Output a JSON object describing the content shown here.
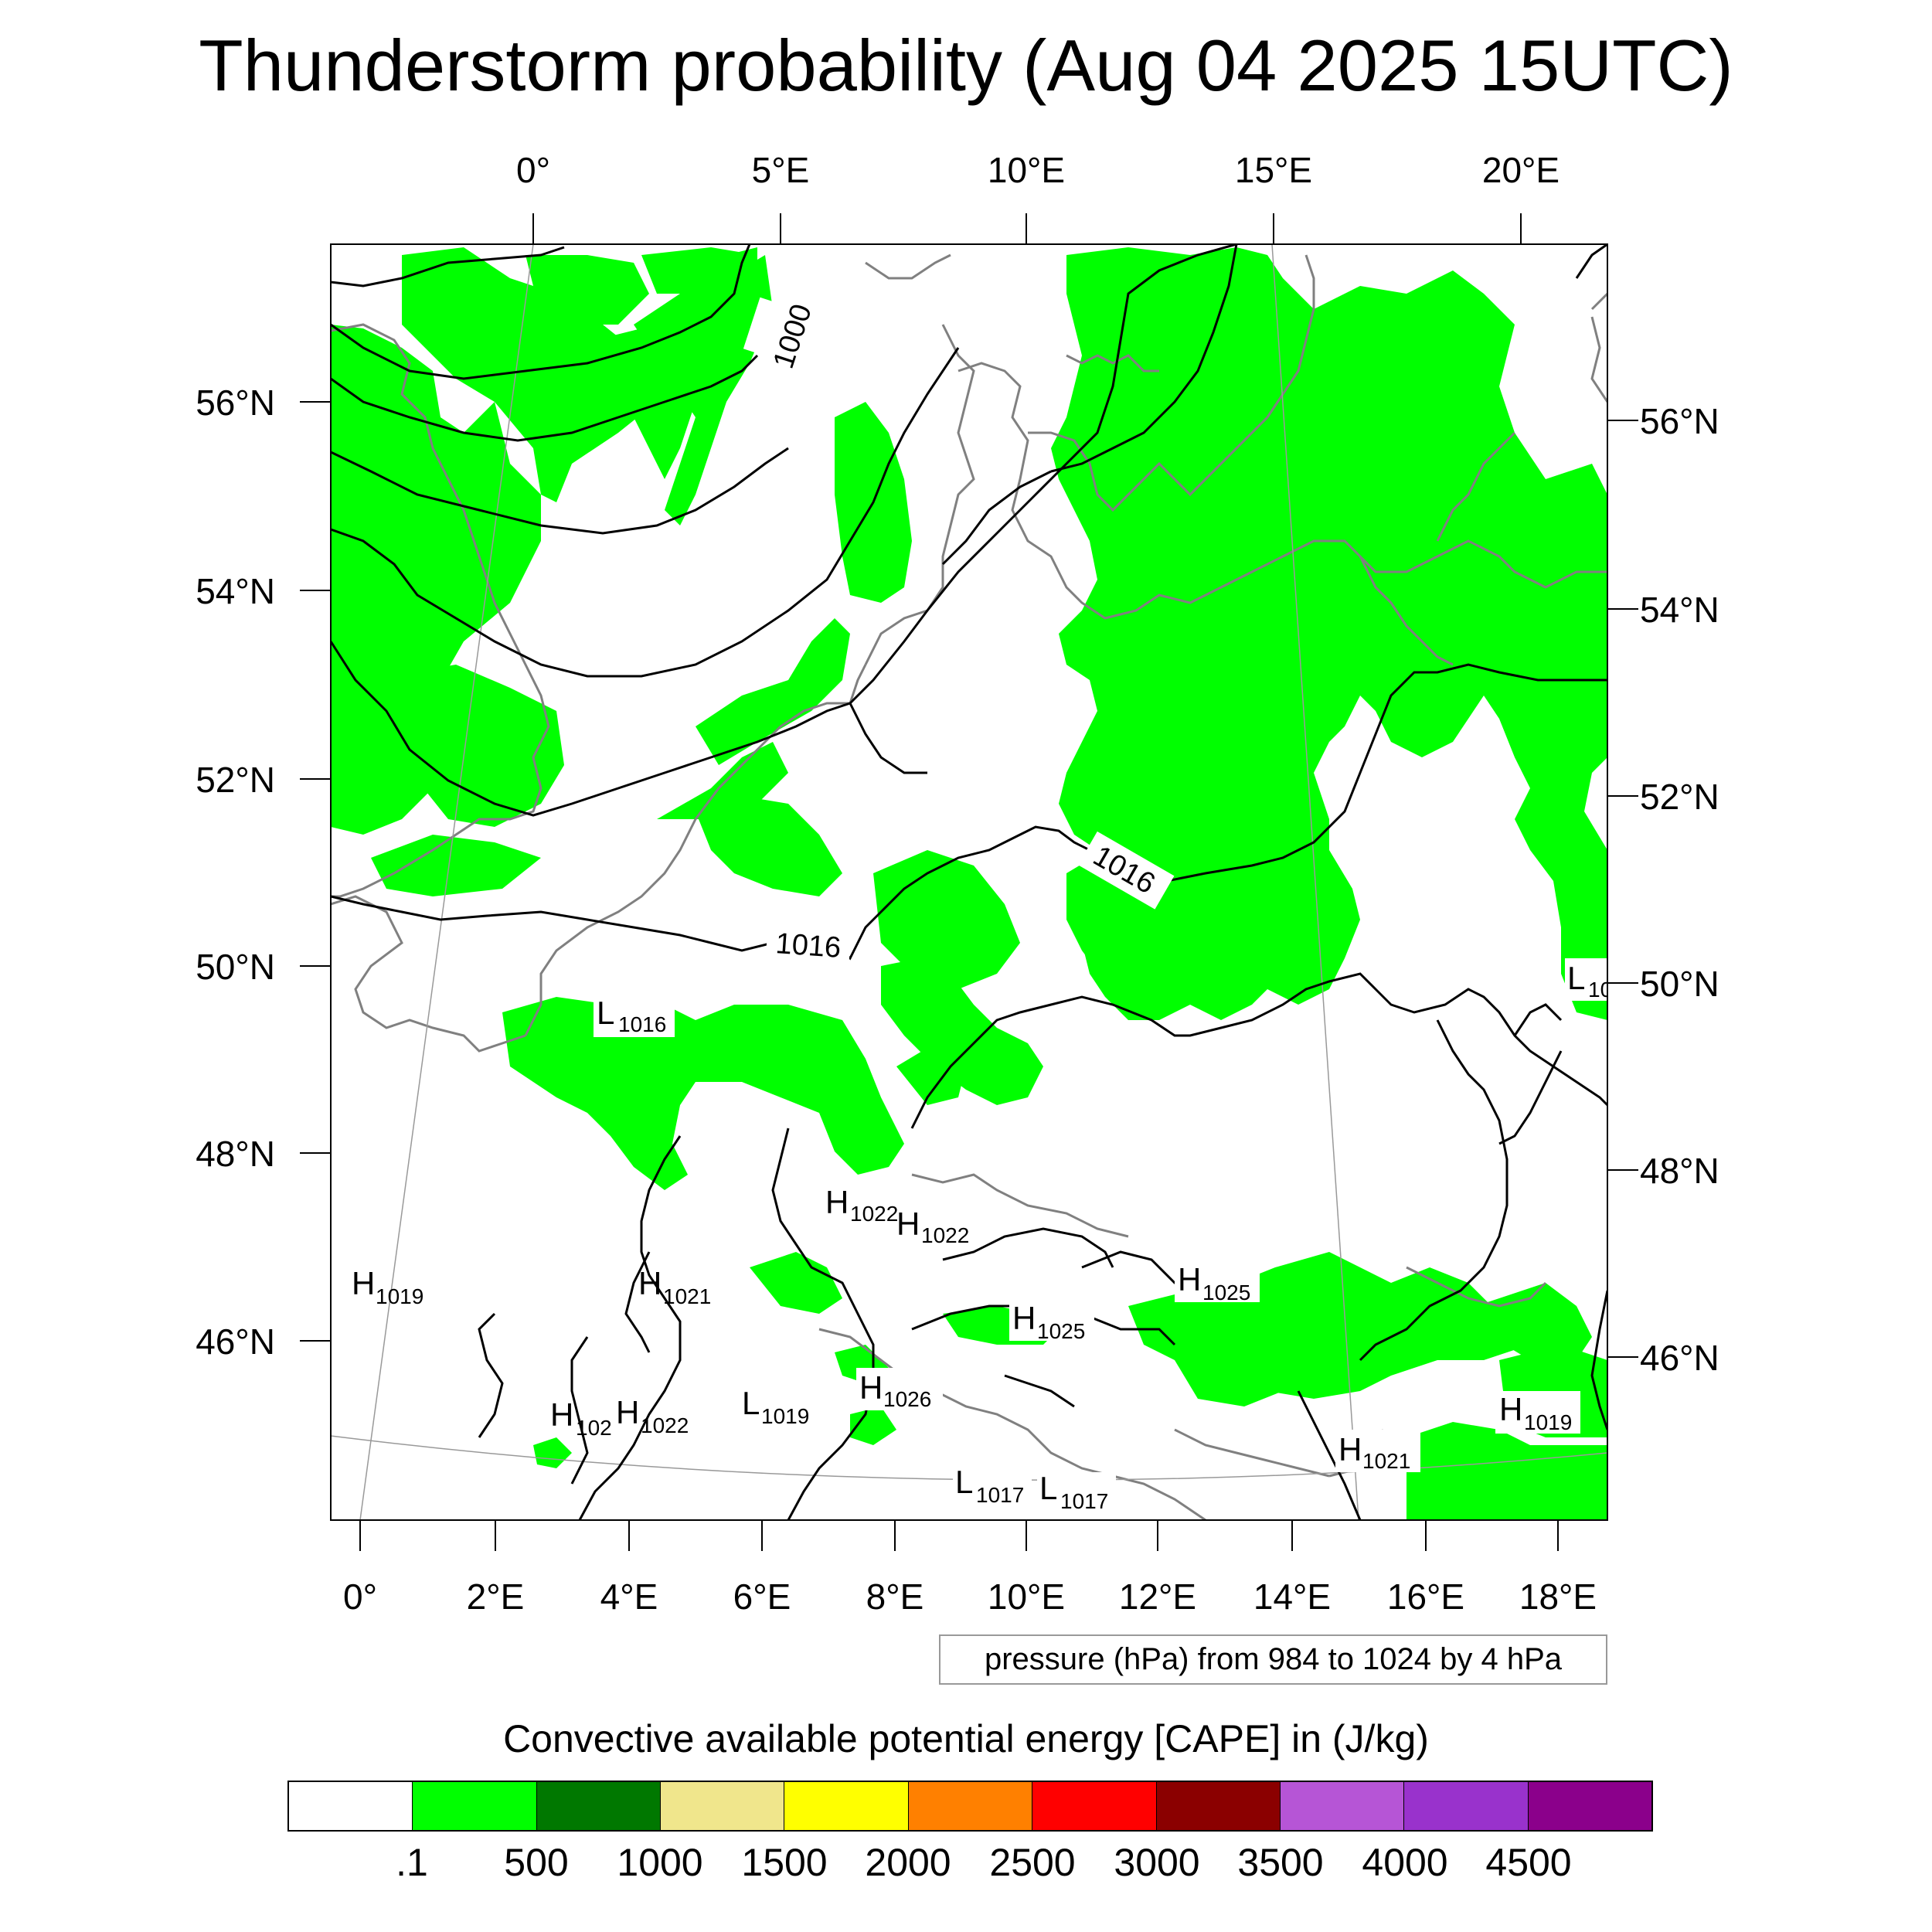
{
  "title": "Thunderstorm probability (Aug 04 2025 15UTC)",
  "map": {
    "top_lon_labels": [
      "0°",
      "5°E",
      "10°E",
      "15°E",
      "20°E"
    ],
    "bottom_lon_labels": [
      "0°",
      "2°E",
      "4°E",
      "6°E",
      "8°E",
      "10°E",
      "12°E",
      "14°E",
      "16°E",
      "18°E"
    ],
    "left_lat_labels": [
      "56°N",
      "54°N",
      "52°N",
      "50°N",
      "48°N",
      "46°N"
    ],
    "right_lat_labels": [
      "56°N",
      "54°N",
      "52°N",
      "50°N",
      "48°N",
      "46°N"
    ],
    "colors": {
      "cape_fill": "#00FF00",
      "coast": "#808080",
      "isobar": "#000000"
    }
  },
  "isobar_labels": [
    "1000",
    "1016",
    "1016"
  ],
  "pressure_centers": [
    {
      "type": "L",
      "value": "1016"
    },
    {
      "type": "L",
      "value": "10"
    },
    {
      "type": "H",
      "value": "1022"
    },
    {
      "type": "H",
      "value": "1022"
    },
    {
      "type": "H",
      "value": "1019"
    },
    {
      "type": "H",
      "value": "1021"
    },
    {
      "type": "H",
      "value": "1025"
    },
    {
      "type": "H",
      "value": "1025"
    },
    {
      "type": "H",
      "value": "102"
    },
    {
      "type": "H",
      "value": "1022"
    },
    {
      "type": "L",
      "value": "1019"
    },
    {
      "type": "H",
      "value": "1026"
    },
    {
      "type": "H",
      "value": "1019"
    },
    {
      "type": "H",
      "value": "1021"
    },
    {
      "type": "L",
      "value": "1017"
    },
    {
      "type": "L",
      "value": "1017"
    }
  ],
  "contour_info": "pressure (hPa) from 984 to 1024 by 4 hPa",
  "colorbar": {
    "title": "Convective available potential energy [CAPE] in (J/kg)",
    "colors": [
      "#FFFFFF",
      "#00FF00",
      "#007800",
      "#F0E68C",
      "#FFFF00",
      "#FF8000",
      "#FF0000",
      "#8B0000",
      "#B655D6",
      "#9932CC",
      "#8B008B"
    ],
    "labels": [
      ".1",
      "500",
      "1000",
      "1500",
      "2000",
      "2500",
      "3000",
      "3500",
      "4000",
      "4500"
    ]
  }
}
